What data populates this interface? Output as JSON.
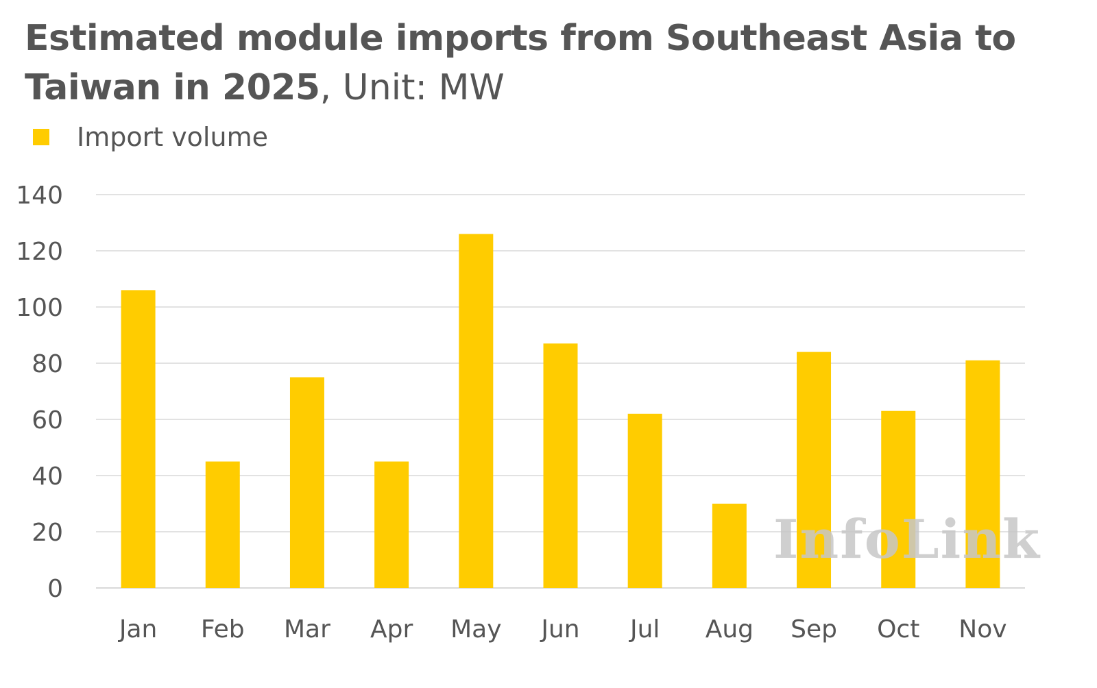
{
  "title": {
    "bold": "Estimated module imports from Southeast Asia to Taiwan in 2025",
    "unit": ", Unit: MW"
  },
  "legend": {
    "label": "Import volume"
  },
  "watermark": "InfoLink",
  "colors": {
    "bar": "#FFCC00",
    "grid": "#D9D9D9",
    "text": "#555555"
  },
  "chart_data": {
    "type": "bar",
    "title": "Estimated module imports from Southeast Asia to Taiwan in 2025, Unit: MW",
    "categories": [
      "Jan",
      "Feb",
      "Mar",
      "Apr",
      "May",
      "Jun",
      "Jul",
      "Aug",
      "Sep",
      "Oct",
      "Nov"
    ],
    "series": [
      {
        "name": "Import volume",
        "values": [
          106,
          45,
          75,
          45,
          126,
          87,
          62,
          30,
          84,
          63,
          81
        ]
      }
    ],
    "yticks": [
      "0",
      "20",
      "40",
      "60",
      "80",
      "100",
      "120",
      "140"
    ],
    "ylim": [
      0,
      140
    ],
    "grid": true,
    "legend_position": "top-left"
  }
}
